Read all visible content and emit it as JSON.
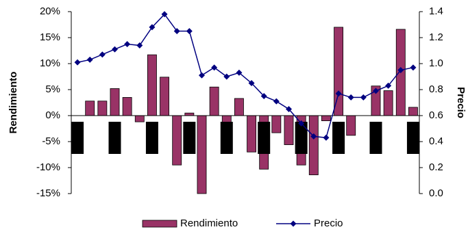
{
  "chart_data": {
    "type": "bar-line",
    "categories": [
      null,
      null,
      null,
      null,
      null,
      null,
      null,
      null,
      null,
      null,
      null,
      null,
      null,
      null,
      null,
      null,
      null,
      null,
      null,
      null,
      null,
      null,
      null,
      null,
      null,
      null,
      null,
      null
    ],
    "series": [
      {
        "name": "Rendimiento",
        "color": "#993366",
        "axis": "y",
        "values": [
          0,
          2.8,
          2.8,
          5.2,
          3.5,
          -1.2,
          11.7,
          7.4,
          -9.5,
          0.5,
          -15,
          5.5,
          -1.5,
          3.3,
          -7,
          -10.3,
          -3.3,
          -5.6,
          -9.5,
          -11.4,
          -1,
          17,
          -3.8,
          0,
          5.7,
          4.8,
          16.6,
          1.6
        ]
      },
      {
        "name": "Precio",
        "color": "#000080",
        "axis": "y2",
        "values": [
          1.01,
          1.03,
          1.07,
          1.11,
          1.15,
          1.14,
          1.28,
          1.38,
          1.25,
          1.25,
          0.91,
          0.97,
          0.9,
          0.93,
          0.85,
          0.75,
          0.71,
          0.65,
          0.54,
          0.44,
          0.43,
          0.77,
          0.74,
          0.74,
          0.79,
          0.83,
          0.95,
          0.97
        ]
      }
    ],
    "ylabel": "Rendimiento",
    "y2label": "Precio",
    "ylim": [
      -15,
      20
    ],
    "yticks": [
      {
        "value": -15,
        "label": "-15%"
      },
      {
        "value": -10,
        "label": "-10%"
      },
      {
        "value": -5,
        "label": "-5%"
      },
      {
        "value": 0,
        "label": "0%"
      },
      {
        "value": 5,
        "label": "5%"
      },
      {
        "value": 10,
        "label": "10%"
      },
      {
        "value": 15,
        "label": "15%"
      },
      {
        "value": 20,
        "label": "20%"
      }
    ],
    "y2lim": [
      0,
      1.4
    ],
    "y2ticks": [
      {
        "value": 0,
        "label": "0.0"
      },
      0.2,
      0.4,
      0.6,
      0.8,
      {
        "value": 1,
        "label": "1.0"
      },
      1.2,
      1.4
    ],
    "legend": "bottom"
  }
}
